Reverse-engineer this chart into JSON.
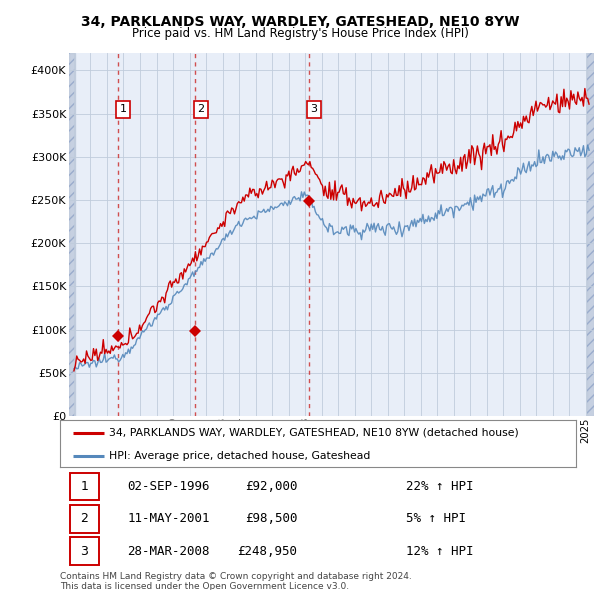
{
  "title": "34, PARKLANDS WAY, WARDLEY, GATESHEAD, NE10 8YW",
  "subtitle": "Price paid vs. HM Land Registry's House Price Index (HPI)",
  "red_line_label": "34, PARKLANDS WAY, WARDLEY, GATESHEAD, NE10 8YW (detached house)",
  "blue_line_label": "HPI: Average price, detached house, Gateshead",
  "transactions": [
    {
      "num": 1,
      "date": "02-SEP-1996",
      "date_val": 1996.67,
      "price": 92000,
      "pct": "22% ↑ HPI"
    },
    {
      "num": 2,
      "date": "11-MAY-2001",
      "date_val": 2001.36,
      "price": 98500,
      "pct": "5% ↑ HPI"
    },
    {
      "num": 3,
      "date": "28-MAR-2008",
      "date_val": 2008.23,
      "price": 248950,
      "pct": "12% ↑ HPI"
    }
  ],
  "footnote1": "Contains HM Land Registry data © Crown copyright and database right 2024.",
  "footnote2": "This data is licensed under the Open Government Licence v3.0.",
  "ylim": [
    0,
    420000
  ],
  "xlim_start": 1993.7,
  "xlim_end": 2025.5,
  "hatch_end": 1994.08,
  "hatch_start_right": 2025.08,
  "background_color": "#ffffff",
  "plot_bg_color": "#e8eef8",
  "hatch_color": "#b8c4d8",
  "grid_color": "#c0ccdc",
  "red_color": "#cc0000",
  "blue_color": "#5588bb",
  "dashed_color": "#cc3333"
}
